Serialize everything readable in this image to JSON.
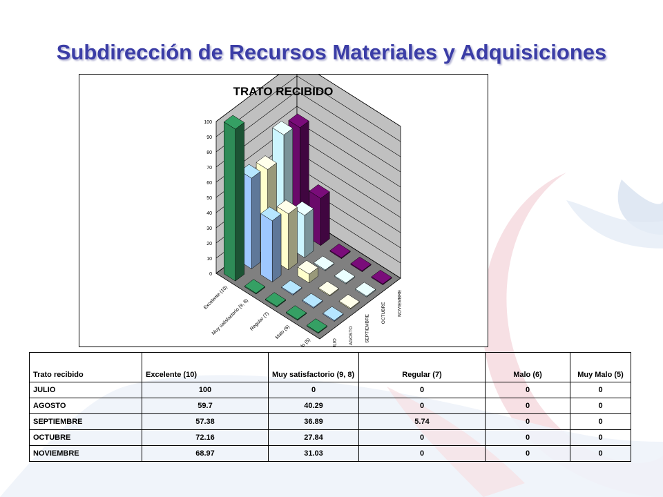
{
  "page": {
    "title": "Subdirección de Recursos Materiales y Adquisiciones"
  },
  "colors": {
    "title": "#3b3da6",
    "excelente": "#2e8b57",
    "muy_satisfactorio": "#9ec8ff",
    "regular": "#ffffcc",
    "malo": "#ccf5ff",
    "muy_malo": "#6a0a6a",
    "plot_wall": "#c0c0c0",
    "plot_floor": "#808080"
  },
  "table": {
    "headers": [
      "Trato recibido",
      "Excelente (10)",
      "Muy satisfactorio (9, 8)",
      "Regular (7)",
      "Malo (6)",
      "Muy Malo (5)"
    ],
    "rows": [
      [
        "JULIO",
        "100",
        "0",
        "0",
        "0",
        "0"
      ],
      [
        "AGOSTO",
        "59.7",
        "40.29",
        "0",
        "0",
        "0"
      ],
      [
        "SEPTIEMBRE",
        "57.38",
        "36.89",
        "5.74",
        "0",
        "0"
      ],
      [
        "OCTUBRE",
        "72.16",
        "27.84",
        "0",
        "0",
        "0"
      ],
      [
        "NOVIEMBRE",
        "68.97",
        "31.03",
        "0",
        "0",
        "0"
      ]
    ]
  },
  "chart_data": {
    "type": "bar",
    "subtype": "3d-column",
    "title": "TRATO RECIBIDO",
    "categories": [
      "Excelente (10)",
      "Muy satisfactorio (9, 8)",
      "Regular (7)",
      "Malo (6)",
      "Muy Malo (5)"
    ],
    "series": [
      {
        "name": "JULIO",
        "color": "#2e8b57",
        "values": [
          100,
          0,
          0,
          0,
          0
        ]
      },
      {
        "name": "AGOSTO",
        "color": "#9ec8ff",
        "values": [
          59.7,
          40.29,
          0,
          0,
          0
        ]
      },
      {
        "name": "SEPTIEMBRE",
        "color": "#ffffcc",
        "values": [
          57.38,
          36.89,
          5.74,
          0,
          0
        ]
      },
      {
        "name": "OCTUBRE",
        "color": "#ccf5ff",
        "values": [
          72.16,
          27.84,
          0,
          0,
          0
        ]
      },
      {
        "name": "NOVIEMBRE",
        "color": "#6a0a6a",
        "values": [
          68.97,
          31.03,
          0,
          0,
          0
        ]
      }
    ],
    "y_ticks": [
      0,
      10,
      20,
      30,
      40,
      50,
      60,
      70,
      80,
      90,
      100
    ],
    "ylim": [
      0,
      100
    ],
    "grid": true,
    "legend": "series labels along depth axis (right side)"
  }
}
